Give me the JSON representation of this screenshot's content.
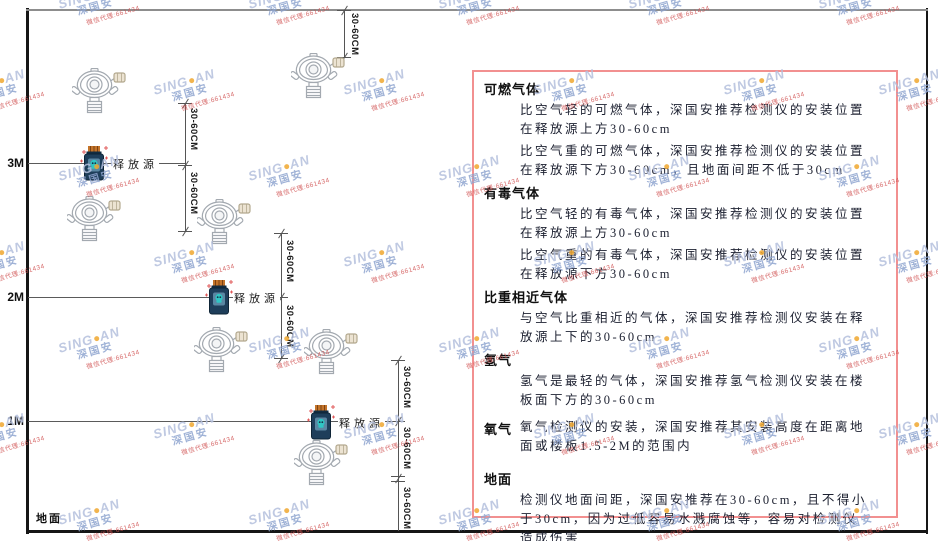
{
  "diagram": {
    "heights": [
      "3M",
      "2M",
      "1M"
    ],
    "ground_label": "地面",
    "release_source_label": "释放源",
    "dim_label": "30-60CM"
  },
  "panel": {
    "sections": [
      {
        "heading": "可燃气体",
        "paras": [
          "比空气轻的可燃气体，深国安推荐检测仪的安装位置在释放源上方30-60cm",
          "比空气重的可燃气体，深国安推荐检测仪的安装位置在释放源下方30-60cm，且地面间距不低于30cm"
        ]
      },
      {
        "heading": "有毒气体",
        "paras": [
          "比空气轻的有毒气体，深国安推荐检测仪的安装位置在释放源上方30-60cm",
          "比空气重的有毒气体，深国安推荐检测仪的安装位置在释放源下方30-60cm"
        ]
      },
      {
        "heading": "比重相近气体",
        "paras": [
          "与空气比重相近的气体，深国安推荐检测仪安装在释放源上下的30-60cm"
        ]
      },
      {
        "heading": "氢气",
        "paras": [
          "氢气是最轻的气体，深国安推荐氢气检测仪安装在楼板面下方的30-60cm"
        ]
      },
      {
        "heading": "氧气",
        "paras": [
          "氧气检测仪的安装，深国安推荐其安装高度在距离地面或楼板1.5-2M的范围内"
        ]
      },
      {
        "heading": "地面",
        "paras": [
          "检测仪地面间距，深国安推荐在30-60cm，且不得小于30cm，因为过低容易水溅腐蚀等，容易对检测仪造成伤害"
        ]
      }
    ]
  },
  "watermark": {
    "brand_left": "SING",
    "brand_right": "AN",
    "cn": "深国安",
    "sub": "微信代理:661434"
  },
  "colors": {
    "panel_border": "#f29090",
    "bottle_body": "#1e3e5a",
    "bottle_cap": "#c4742a",
    "skull": "#2fc6c4",
    "watermark_blue": "#b5c0dd",
    "watermark_red": "#d05050",
    "line_gray": "#555555",
    "wall_black": "#161616"
  }
}
